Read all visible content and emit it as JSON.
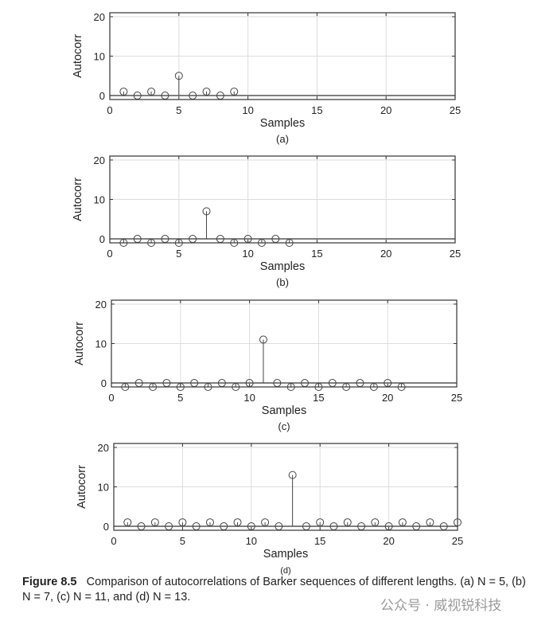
{
  "chart_data": [
    {
      "type": "stem",
      "panel_label": "(a)",
      "xlabel": "Samples",
      "ylabel": "Autocorr",
      "xlim": [
        0,
        25
      ],
      "ylim": [
        -1,
        21
      ],
      "xticks": [
        0,
        5,
        10,
        15,
        20,
        25
      ],
      "yticks": [
        0,
        10,
        20
      ],
      "grid": true,
      "x": [
        1,
        2,
        3,
        4,
        5,
        6,
        7,
        8,
        9
      ],
      "y": [
        1,
        0,
        1,
        0,
        5,
        0,
        1,
        0,
        1
      ]
    },
    {
      "type": "stem",
      "panel_label": "(b)",
      "xlabel": "Samples",
      "ylabel": "Autocorr",
      "xlim": [
        0,
        25
      ],
      "ylim": [
        -1,
        21
      ],
      "xticks": [
        0,
        5,
        10,
        15,
        20,
        25
      ],
      "yticks": [
        0,
        10,
        20
      ],
      "grid": true,
      "x": [
        1,
        2,
        3,
        4,
        5,
        6,
        7,
        8,
        9,
        10,
        11,
        12,
        13
      ],
      "y": [
        -1,
        0,
        -1,
        0,
        -1,
        0,
        7,
        0,
        -1,
        0,
        -1,
        0,
        -1
      ]
    },
    {
      "type": "stem",
      "panel_label": "(c)",
      "xlabel": "Samples",
      "ylabel": "Autocorr",
      "xlim": [
        0,
        25
      ],
      "ylim": [
        -1,
        21
      ],
      "xticks": [
        0,
        5,
        10,
        15,
        20,
        25
      ],
      "yticks": [
        0,
        10,
        20
      ],
      "grid": true,
      "x": [
        1,
        2,
        3,
        4,
        5,
        6,
        7,
        8,
        9,
        10,
        11,
        12,
        13,
        14,
        15,
        16,
        17,
        18,
        19,
        20,
        21
      ],
      "y": [
        -1,
        0,
        -1,
        0,
        -1,
        0,
        -1,
        0,
        -1,
        0,
        11,
        0,
        -1,
        0,
        -1,
        0,
        -1,
        0,
        -1,
        0,
        -1
      ]
    },
    {
      "type": "stem",
      "panel_label": "(d)",
      "xlabel": "Samples",
      "ylabel": "Autocorr",
      "xlim": [
        0,
        25
      ],
      "ylim": [
        -1,
        21
      ],
      "xticks": [
        0,
        5,
        10,
        15,
        20,
        25
      ],
      "yticks": [
        0,
        10,
        20
      ],
      "grid": true,
      "x": [
        1,
        2,
        3,
        4,
        5,
        6,
        7,
        8,
        9,
        10,
        11,
        12,
        13,
        14,
        15,
        16,
        17,
        18,
        19,
        20,
        21,
        22,
        23,
        24,
        25
      ],
      "y": [
        1,
        0,
        1,
        0,
        1,
        0,
        1,
        0,
        1,
        0,
        1,
        0,
        13,
        0,
        1,
        0,
        1,
        0,
        1,
        0,
        1,
        0,
        1,
        0,
        1
      ]
    }
  ],
  "caption": {
    "label": "Figure 8.5",
    "text": "Comparison of autocorrelations of Barker sequences of different lengths. (a) N = 5, (b) N = 7, (c) N = 11, and (d) N = 13."
  },
  "watermark": "公众号 · 威视锐科技",
  "colors": {
    "axis": "#333333",
    "grid": "#dddddd",
    "marker": "#444444"
  }
}
